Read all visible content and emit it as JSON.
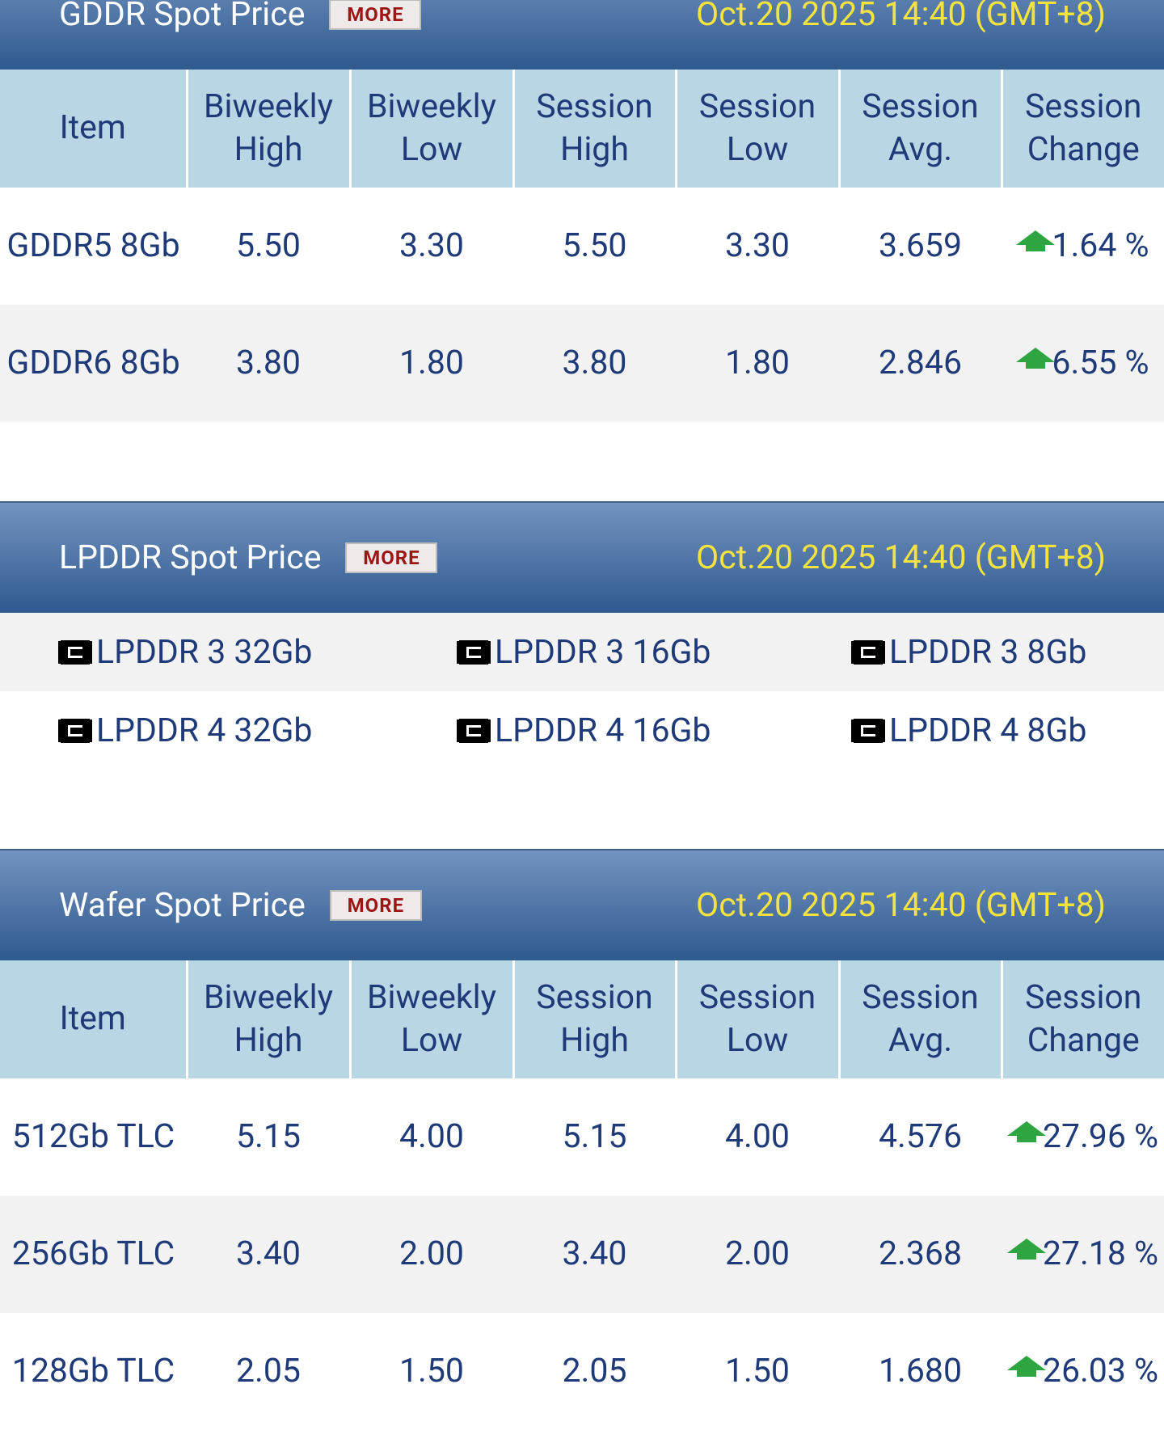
{
  "sections": [
    {
      "title": "GDDR Spot Price",
      "more": "MORE",
      "time": "Oct.20 2025 14:40 (GMT+8)",
      "table": {
        "header": [
          "Item",
          "Biweekly High",
          "Biweekly Low",
          "Session High",
          "Session Low",
          "Session Avg.",
          "Session Change"
        ],
        "rows": [
          [
            "GDDR5 8Gb",
            "5.50",
            "3.30",
            "5.50",
            "3.30",
            "3.659",
            "1.64 %"
          ],
          [
            "GDDR6 8Gb",
            "3.80",
            "1.80",
            "3.80",
            "1.80",
            "2.846",
            "6.55 %"
          ]
        ]
      }
    },
    {
      "title": "LPDDR Spot Price",
      "more": "MORE",
      "time": "Oct.20 2025 14:40 (GMT+8)",
      "links": [
        [
          "LPDDR 3 32Gb",
          "LPDDR 3 16Gb",
          "LPDDR 3 8Gb"
        ],
        [
          "LPDDR 4 32Gb",
          "LPDDR 4 16Gb",
          "LPDDR 4 8Gb"
        ]
      ]
    },
    {
      "title": "Wafer Spot Price",
      "more": "MORE",
      "time": "Oct.20 2025 14:40 (GMT+8)",
      "table": {
        "header": [
          "Item",
          "Biweekly High",
          "Biweekly Low",
          "Session High",
          "Session Low",
          "Session Avg.",
          "Session Change"
        ],
        "rows": [
          [
            "512Gb TLC",
            "5.15",
            "4.00",
            "5.15",
            "4.00",
            "4.576",
            "27.96 %"
          ],
          [
            "256Gb TLC",
            "3.40",
            "2.00",
            "3.40",
            "2.00",
            "2.368",
            "27.18 %"
          ],
          [
            "128Gb TLC",
            "2.05",
            "1.50",
            "2.05",
            "1.50",
            "1.680",
            "26.03 %"
          ]
        ]
      }
    }
  ]
}
